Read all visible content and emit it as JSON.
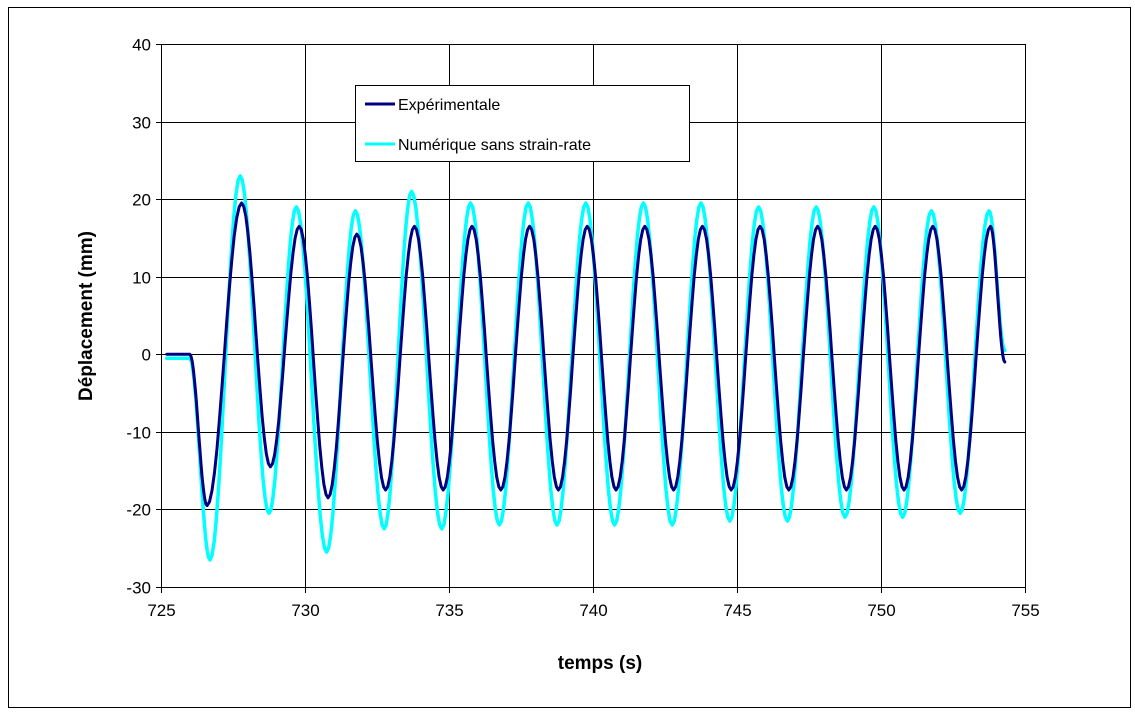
{
  "chart_data": {
    "type": "line",
    "title": "",
    "xlabel": "temps (s)",
    "ylabel": "Déplacement (mm)",
    "xlim": [
      725,
      755
    ],
    "ylim": [
      -30,
      40
    ],
    "xticks": [
      725,
      730,
      735,
      740,
      745,
      750,
      755
    ],
    "yticks": [
      40,
      30,
      20,
      10,
      0,
      -10,
      -20,
      -30
    ],
    "xtick_labels": [
      "725",
      "730",
      "735",
      "740",
      "745",
      "750",
      "755"
    ],
    "ytick_labels": [
      "40",
      "30",
      "20",
      "10",
      "0",
      "-10",
      "-20",
      "-30"
    ],
    "grid": true,
    "legend_position": "top-center",
    "series": [
      {
        "name": "Expérimentale",
        "color": "#000080",
        "x": [
          725.2,
          726.0,
          726.6,
          727.8,
          728.8,
          729.8,
          730.8,
          731.8,
          732.8,
          733.8,
          734.8,
          735.8,
          736.8,
          737.8,
          738.8,
          739.8,
          740.8,
          741.8,
          742.8,
          743.8,
          744.8,
          745.8,
          746.8,
          747.8,
          748.8,
          749.8,
          750.8,
          751.8,
          752.8,
          753.8,
          754.3
        ],
        "y": [
          0,
          0,
          -19.5,
          19.5,
          -14.5,
          16.5,
          -18.5,
          15.5,
          -17.5,
          16.5,
          -17.5,
          16.5,
          -17.5,
          16.5,
          -17.5,
          16.5,
          -17.5,
          16.5,
          -17.5,
          16.5,
          -17.5,
          16.5,
          -17.5,
          16.5,
          -17.5,
          16.5,
          -17.5,
          16.5,
          -17.5,
          16.5,
          -1
        ]
      },
      {
        "name": "Numérique sans strain-rate",
        "color": "#00FFFF",
        "x": [
          725.2,
          726.0,
          726.7,
          727.75,
          728.75,
          729.7,
          730.75,
          731.75,
          732.75,
          733.7,
          734.75,
          735.75,
          736.75,
          737.75,
          738.75,
          739.75,
          740.75,
          741.75,
          742.75,
          743.75,
          744.75,
          745.75,
          746.75,
          747.75,
          748.75,
          749.75,
          750.75,
          751.75,
          752.75,
          753.75,
          754.3
        ],
        "y": [
          -0.5,
          -0.5,
          -26.5,
          23,
          -20.5,
          19,
          -25.5,
          18.5,
          -22.5,
          21,
          -22.5,
          19.5,
          -22,
          19.5,
          -22,
          19.5,
          -22,
          19.5,
          -22,
          19.5,
          -21.5,
          19,
          -21.5,
          19,
          -21,
          19,
          -21,
          18.5,
          -20.5,
          18.5,
          0.5
        ]
      }
    ]
  }
}
